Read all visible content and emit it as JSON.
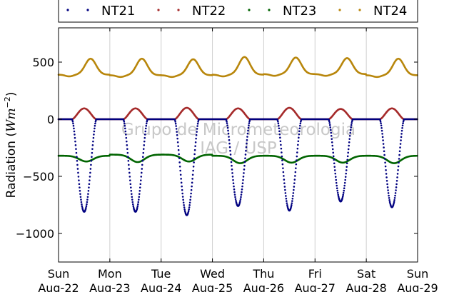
{
  "chart_data": {
    "type": "scatter",
    "ylabel": "Radiation (",
    "ylabel_unit_base": "Wm",
    "ylabel_unit_exp": "−2",
    "ylabel_close": ")",
    "ylim": [
      -1250,
      800
    ],
    "yticks": [
      500,
      0,
      -500,
      -1000
    ],
    "ytick_labels": [
      "500",
      "0",
      "−500",
      "−1000"
    ],
    "xlim": [
      0,
      7
    ],
    "xticks": [
      0,
      1,
      2,
      3,
      4,
      5,
      6,
      7
    ],
    "xtick_days": [
      "Sun",
      "Mon",
      "Tue",
      "Wed",
      "Thu",
      "Fri",
      "Sat",
      "Sun"
    ],
    "xtick_dates": [
      "Aug-22",
      "Aug-23",
      "Aug-24",
      "Aug-25",
      "Aug-26",
      "Aug-27",
      "Aug-28",
      "Aug-29"
    ],
    "grid": "vertical",
    "legend_position": "top",
    "watermark": [
      "Grupo de Micrometeorologia",
      "IAG / USP"
    ],
    "series": [
      {
        "name": "NT21",
        "color": "#000080",
        "baseline": 0,
        "peak_hour": 12,
        "daily_extreme": [
          -810,
          -810,
          -840,
          -760,
          -800,
          -720,
          -770
        ]
      },
      {
        "name": "NT22",
        "color": "#a52a2a",
        "baseline": 0,
        "peak_hour": 12,
        "daily_extreme": [
          95,
          95,
          100,
          95,
          100,
          90,
          95
        ]
      },
      {
        "name": "NT23",
        "color": "#006400",
        "night_level": [
          -320,
          -310,
          -310,
          -320,
          -320,
          -320,
          -320
        ],
        "day_level": [
          -370,
          -375,
          -370,
          -385,
          -380,
          -380,
          -385
        ],
        "peak_hour": 13
      },
      {
        "name": "NT24",
        "color": "#b8860b",
        "night_level": [
          390,
          385,
          385,
          390,
          395,
          395,
          385
        ],
        "daily_extreme": [
          530,
          530,
          525,
          545,
          540,
          535,
          530
        ],
        "peak_hour": 15
      }
    ]
  }
}
